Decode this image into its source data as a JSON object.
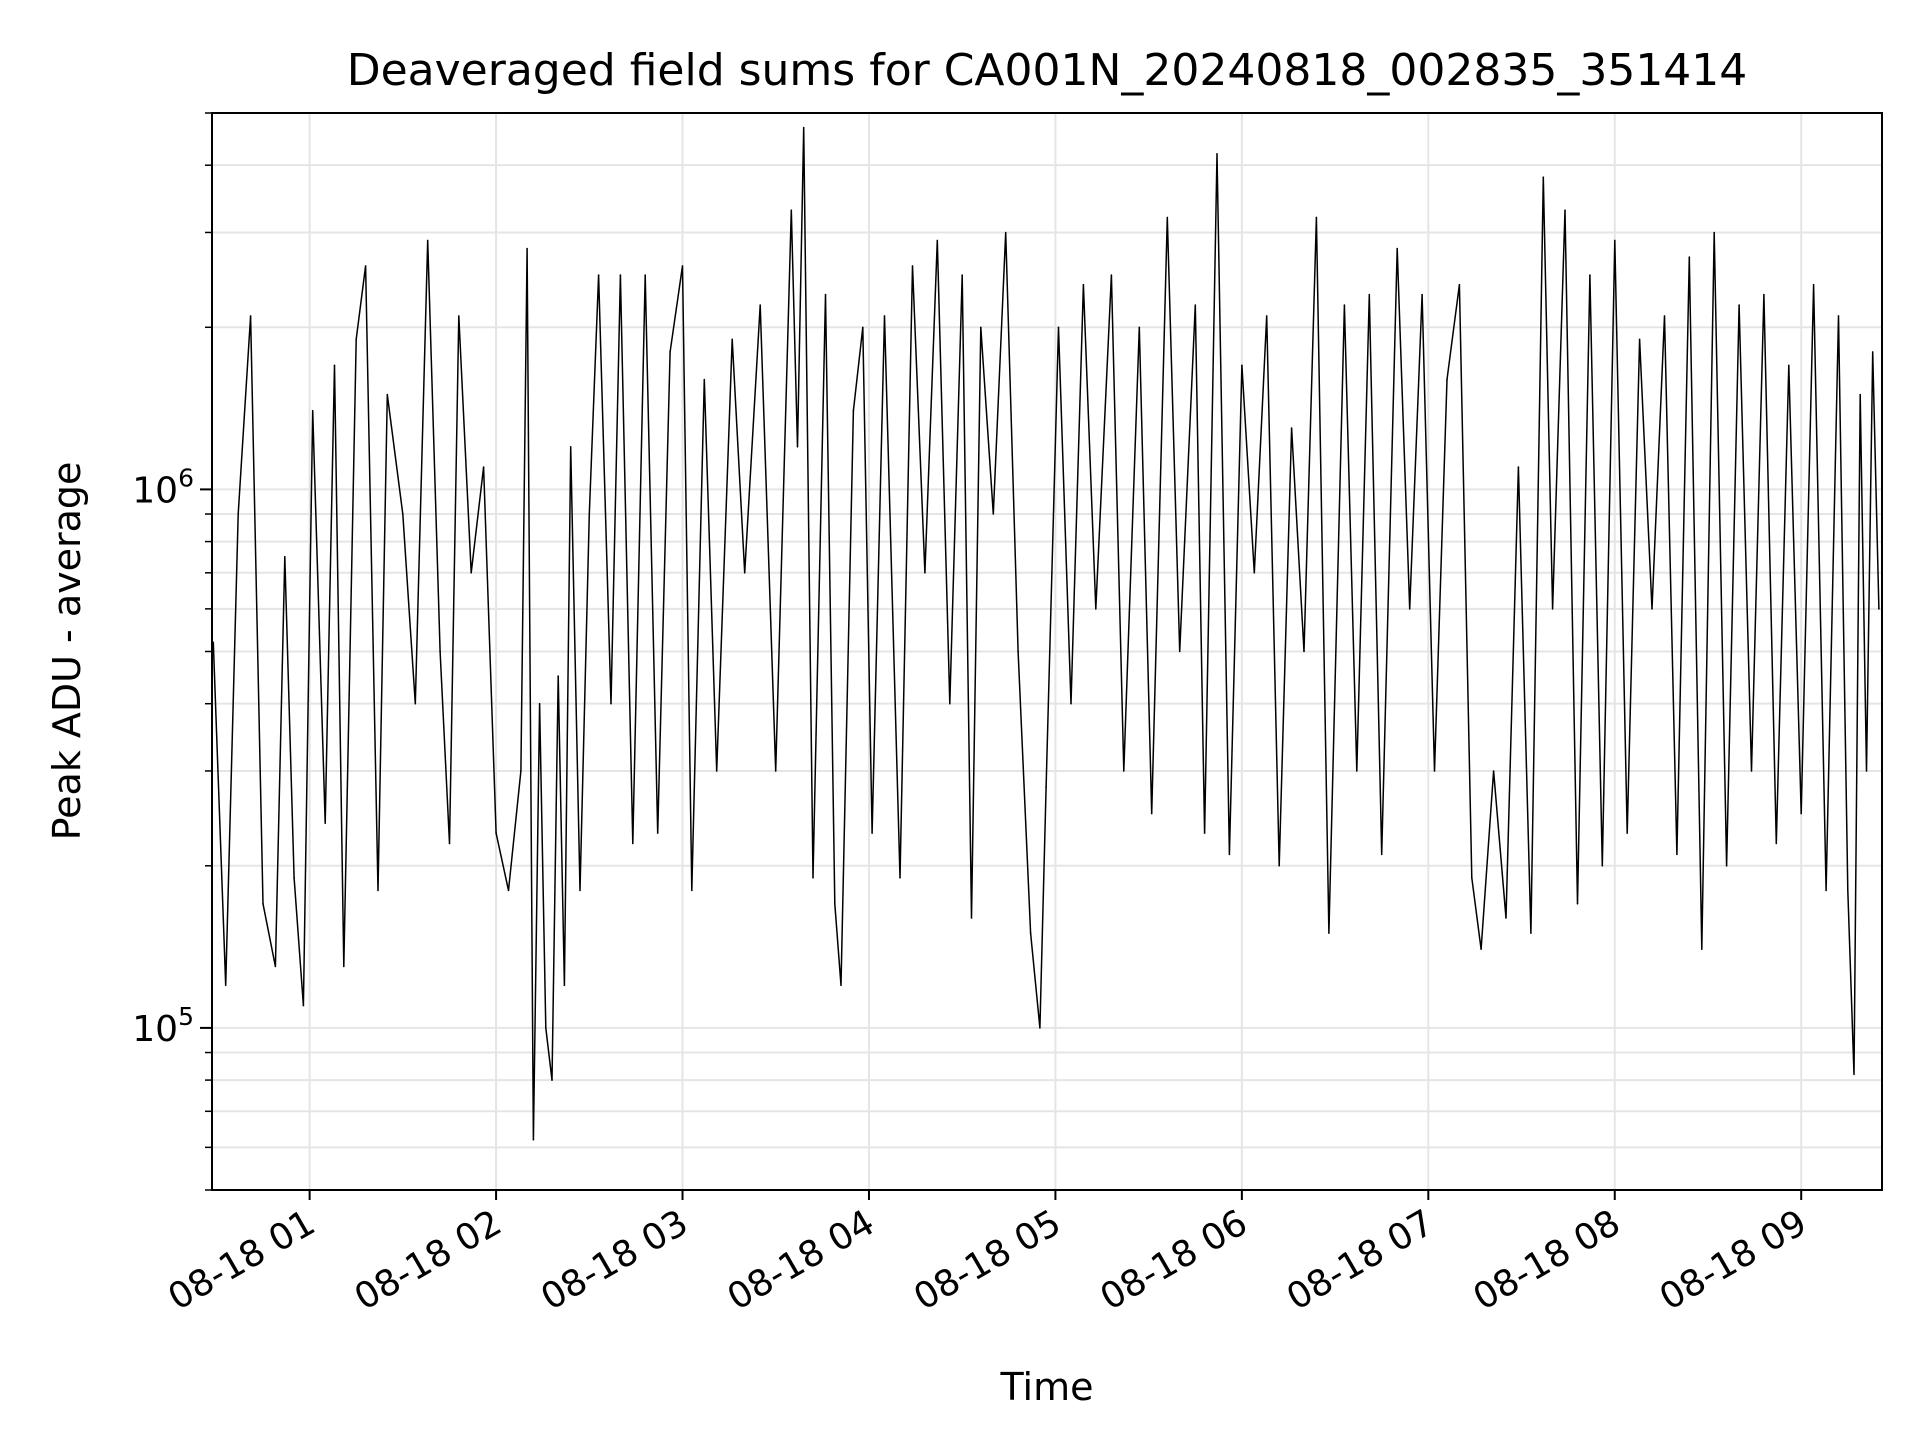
{
  "chart_data": {
    "type": "line",
    "title": "Deaveraged field sums for CA001N_20240818_002835_351414",
    "xlabel": "Time",
    "ylabel": "Peak ADU - average",
    "x_range": [
      "2024-08-18 00:28:35",
      "2024-08-18 09:26:00"
    ],
    "ylim": [
      50000,
      5000000
    ],
    "y_scale": "log",
    "x_ticks": [
      "08-18 01",
      "08-18 02",
      "08-18 03",
      "08-18 04",
      "08-18 05",
      "08-18 06",
      "08-18 07",
      "08-18 08",
      "08-18 09"
    ],
    "y_ticks": [
      {
        "value": 100000,
        "mantissa": "10",
        "exponent": "5"
      },
      {
        "value": 1000000,
        "mantissa": "10",
        "exponent": "6"
      }
    ],
    "grid": true,
    "line_color": "#000000",
    "grid_color": "#e5e5e5",
    "series": [
      {
        "points": [
          [
            "2024-08-18 00:29",
            520000
          ],
          [
            "2024-08-18 00:33",
            120000
          ],
          [
            "2024-08-18 00:37",
            900000
          ],
          [
            "2024-08-18 00:41",
            2100000
          ],
          [
            "2024-08-18 00:45",
            170000
          ],
          [
            "2024-08-18 00:49",
            130000
          ],
          [
            "2024-08-18 00:52",
            750000
          ],
          [
            "2024-08-18 00:55",
            190000
          ],
          [
            "2024-08-18 00:58",
            110000
          ],
          [
            "2024-08-18 01:01",
            1400000
          ],
          [
            "2024-08-18 01:05",
            240000
          ],
          [
            "2024-08-18 01:08",
            1700000
          ],
          [
            "2024-08-18 01:11",
            130000
          ],
          [
            "2024-08-18 01:15",
            1900000
          ],
          [
            "2024-08-18 01:18",
            2600000
          ],
          [
            "2024-08-18 01:22",
            180000
          ],
          [
            "2024-08-18 01:25",
            1500000
          ],
          [
            "2024-08-18 01:30",
            900000
          ],
          [
            "2024-08-18 01:34",
            400000
          ],
          [
            "2024-08-18 01:38",
            2900000
          ],
          [
            "2024-08-18 01:42",
            500000
          ],
          [
            "2024-08-18 01:45",
            220000
          ],
          [
            "2024-08-18 01:48",
            2100000
          ],
          [
            "2024-08-18 01:52",
            700000
          ],
          [
            "2024-08-18 01:56",
            1100000
          ],
          [
            "2024-08-18 02:00",
            230000
          ],
          [
            "2024-08-18 02:04",
            180000
          ],
          [
            "2024-08-18 02:08",
            300000
          ],
          [
            "2024-08-18 02:10",
            2800000
          ],
          [
            "2024-08-18 02:12",
            62000
          ],
          [
            "2024-08-18 02:14",
            400000
          ],
          [
            "2024-08-18 02:16",
            100000
          ],
          [
            "2024-08-18 02:18",
            80000
          ],
          [
            "2024-08-18 02:20",
            450000
          ],
          [
            "2024-08-18 02:22",
            120000
          ],
          [
            "2024-08-18 02:24",
            1200000
          ],
          [
            "2024-08-18 02:27",
            180000
          ],
          [
            "2024-08-18 02:30",
            900000
          ],
          [
            "2024-08-18 02:33",
            2500000
          ],
          [
            "2024-08-18 02:37",
            400000
          ],
          [
            "2024-08-18 02:40",
            2500000
          ],
          [
            "2024-08-18 02:44",
            220000
          ],
          [
            "2024-08-18 02:48",
            2500000
          ],
          [
            "2024-08-18 02:52",
            230000
          ],
          [
            "2024-08-18 02:56",
            1800000
          ],
          [
            "2024-08-18 03:00",
            2600000
          ],
          [
            "2024-08-18 03:03",
            180000
          ],
          [
            "2024-08-18 03:07",
            1600000
          ],
          [
            "2024-08-18 03:11",
            300000
          ],
          [
            "2024-08-18 03:16",
            1900000
          ],
          [
            "2024-08-18 03:20",
            700000
          ],
          [
            "2024-08-18 03:25",
            2200000
          ],
          [
            "2024-08-18 03:30",
            300000
          ],
          [
            "2024-08-18 03:35",
            3300000
          ],
          [
            "2024-08-18 03:37",
            1200000
          ],
          [
            "2024-08-18 03:39",
            4700000
          ],
          [
            "2024-08-18 03:42",
            190000
          ],
          [
            "2024-08-18 03:46",
            2300000
          ],
          [
            "2024-08-18 03:49",
            170000
          ],
          [
            "2024-08-18 03:51",
            120000
          ],
          [
            "2024-08-18 03:55",
            1400000
          ],
          [
            "2024-08-18 03:58",
            2000000
          ],
          [
            "2024-08-18 04:01",
            230000
          ],
          [
            "2024-08-18 04:05",
            2100000
          ],
          [
            "2024-08-18 04:10",
            190000
          ],
          [
            "2024-08-18 04:14",
            2600000
          ],
          [
            "2024-08-18 04:18",
            700000
          ],
          [
            "2024-08-18 04:22",
            2900000
          ],
          [
            "2024-08-18 04:26",
            400000
          ],
          [
            "2024-08-18 04:30",
            2500000
          ],
          [
            "2024-08-18 04:33",
            160000
          ],
          [
            "2024-08-18 04:36",
            2000000
          ],
          [
            "2024-08-18 04:40",
            900000
          ],
          [
            "2024-08-18 04:44",
            3000000
          ],
          [
            "2024-08-18 04:48",
            500000
          ],
          [
            "2024-08-18 04:52",
            150000
          ],
          [
            "2024-08-18 04:55",
            100000
          ],
          [
            "2024-08-18 04:57",
            280000
          ],
          [
            "2024-08-18 05:01",
            2000000
          ],
          [
            "2024-08-18 05:05",
            400000
          ],
          [
            "2024-08-18 05:09",
            2400000
          ],
          [
            "2024-08-18 05:13",
            600000
          ],
          [
            "2024-08-18 05:18",
            2500000
          ],
          [
            "2024-08-18 05:22",
            300000
          ],
          [
            "2024-08-18 05:27",
            2000000
          ],
          [
            "2024-08-18 05:31",
            250000
          ],
          [
            "2024-08-18 05:36",
            3200000
          ],
          [
            "2024-08-18 05:40",
            500000
          ],
          [
            "2024-08-18 05:45",
            2200000
          ],
          [
            "2024-08-18 05:48",
            230000
          ],
          [
            "2024-08-18 05:52",
            4200000
          ],
          [
            "2024-08-18 05:56",
            210000
          ],
          [
            "2024-08-18 06:00",
            1700000
          ],
          [
            "2024-08-18 06:04",
            700000
          ],
          [
            "2024-08-18 06:08",
            2100000
          ],
          [
            "2024-08-18 06:12",
            200000
          ],
          [
            "2024-08-18 06:16",
            1300000
          ],
          [
            "2024-08-18 06:20",
            500000
          ],
          [
            "2024-08-18 06:24",
            3200000
          ],
          [
            "2024-08-18 06:28",
            150000
          ],
          [
            "2024-08-18 06:33",
            2200000
          ],
          [
            "2024-08-18 06:37",
            300000
          ],
          [
            "2024-08-18 06:41",
            2300000
          ],
          [
            "2024-08-18 06:45",
            210000
          ],
          [
            "2024-08-18 06:50",
            2800000
          ],
          [
            "2024-08-18 06:54",
            600000
          ],
          [
            "2024-08-18 06:58",
            2300000
          ],
          [
            "2024-08-18 07:02",
            300000
          ],
          [
            "2024-08-18 07:06",
            1600000
          ],
          [
            "2024-08-18 07:10",
            2400000
          ],
          [
            "2024-08-18 07:14",
            190000
          ],
          [
            "2024-08-18 07:17",
            140000
          ],
          [
            "2024-08-18 07:21",
            300000
          ],
          [
            "2024-08-18 07:25",
            160000
          ],
          [
            "2024-08-18 07:29",
            1100000
          ],
          [
            "2024-08-18 07:33",
            150000
          ],
          [
            "2024-08-18 07:37",
            3800000
          ],
          [
            "2024-08-18 07:40",
            600000
          ],
          [
            "2024-08-18 07:44",
            3300000
          ],
          [
            "2024-08-18 07:48",
            170000
          ],
          [
            "2024-08-18 07:52",
            2500000
          ],
          [
            "2024-08-18 07:56",
            200000
          ],
          [
            "2024-08-18 08:00",
            2900000
          ],
          [
            "2024-08-18 08:04",
            230000
          ],
          [
            "2024-08-18 08:08",
            1900000
          ],
          [
            "2024-08-18 08:12",
            600000
          ],
          [
            "2024-08-18 08:16",
            2100000
          ],
          [
            "2024-08-18 08:20",
            210000
          ],
          [
            "2024-08-18 08:24",
            2700000
          ],
          [
            "2024-08-18 08:28",
            140000
          ],
          [
            "2024-08-18 08:32",
            3000000
          ],
          [
            "2024-08-18 08:36",
            200000
          ],
          [
            "2024-08-18 08:40",
            2200000
          ],
          [
            "2024-08-18 08:44",
            300000
          ],
          [
            "2024-08-18 08:48",
            2300000
          ],
          [
            "2024-08-18 08:52",
            220000
          ],
          [
            "2024-08-18 08:56",
            1700000
          ],
          [
            "2024-08-18 09:00",
            250000
          ],
          [
            "2024-08-18 09:04",
            2400000
          ],
          [
            "2024-08-18 09:08",
            180000
          ],
          [
            "2024-08-18 09:12",
            2100000
          ],
          [
            "2024-08-18 09:15",
            180000
          ],
          [
            "2024-08-18 09:17",
            82000
          ],
          [
            "2024-08-18 09:19",
            1500000
          ],
          [
            "2024-08-18 09:21",
            300000
          ],
          [
            "2024-08-18 09:23",
            1800000
          ],
          [
            "2024-08-18 09:25",
            600000
          ]
        ]
      }
    ]
  }
}
